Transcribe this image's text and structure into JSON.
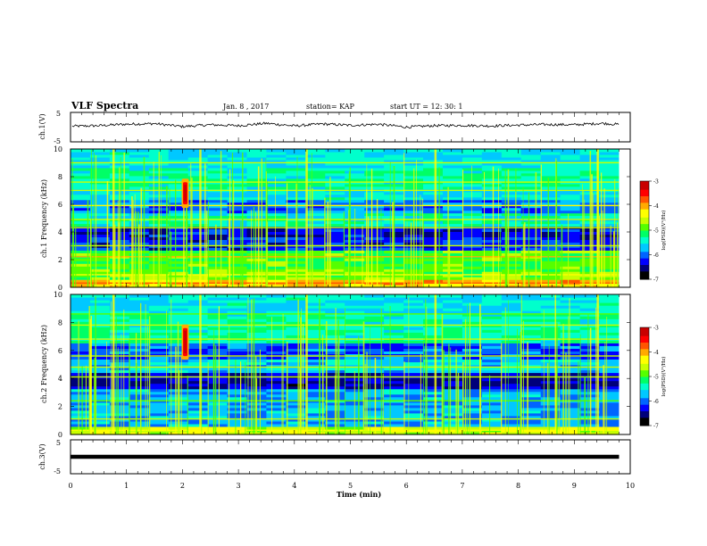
{
  "header": {
    "title": "VLF Spectra",
    "date": "Jan. 8 , 2017",
    "station": "station= KAP",
    "start_ut": "start UT = 12: 30: 1"
  },
  "colormap": [
    "#000000",
    "#00007a",
    "#0000ff",
    "#0064ff",
    "#00c8ff",
    "#00ffcc",
    "#00ff66",
    "#55ff00",
    "#c8ff00",
    "#ffff00",
    "#ffaa00",
    "#ff5500",
    "#ff0000",
    "#c80000"
  ],
  "chart_data": [
    {
      "type": "line",
      "panel": "ch1-waveform",
      "ylabel": "ch.1(V)",
      "ylim": [
        -5,
        5
      ],
      "yticks": [
        "5",
        "-5"
      ],
      "x": [
        0.0,
        0.5,
        1.0,
        1.5,
        2.0,
        2.5,
        3.0,
        3.5,
        4.0,
        4.5,
        5.0,
        5.5,
        6.0,
        6.5,
        7.0,
        7.5,
        8.0,
        8.5,
        9.0,
        9.5,
        9.8
      ],
      "y": [
        0.3,
        0.5,
        1.0,
        1.2,
        0.2,
        0.8,
        0.5,
        1.3,
        0.4,
        1.1,
        0.6,
        1.0,
        0.0,
        0.5,
        0.6,
        0.4,
        0.7,
        0.9,
        0.8,
        1.3,
        0.9
      ]
    },
    {
      "type": "heatmap",
      "panel": "ch1-spectrogram",
      "ylabel": "ch.1 Frequency (kHz)",
      "xlim": [
        0,
        10
      ],
      "ylim": [
        0,
        10
      ],
      "yticks": [
        "0",
        "2",
        "4",
        "6",
        "8",
        "10"
      ],
      "colorbar_label": "log(PSD)(V²/Hz)",
      "colorbar_ticks": [
        "-3",
        "-4",
        "-5",
        "-6",
        "-7"
      ],
      "colorbar_range": [
        -7,
        -3
      ],
      "features": {
        "hot_spot_min": 2.05,
        "hot_spot_khz": [
          6.0,
          7.6
        ]
      }
    },
    {
      "type": "heatmap",
      "panel": "ch2-spectrogram",
      "ylabel": "ch.2 Frequency (kHz)",
      "xlim": [
        0,
        10
      ],
      "ylim": [
        0,
        10
      ],
      "yticks": [
        "0",
        "2",
        "4",
        "6",
        "8",
        "10"
      ],
      "colorbar_label": "log(PSD)(V²/Hz)",
      "colorbar_ticks": [
        "-3",
        "-4",
        "-5",
        "-6",
        "-7"
      ],
      "colorbar_range": [
        -7,
        -3
      ],
      "features": {
        "hot_spot_min": 2.05,
        "hot_spot_khz": [
          5.6,
          7.6
        ]
      }
    },
    {
      "type": "line",
      "panel": "ch3-waveform",
      "ylabel": "ch.3(V)",
      "ylim": [
        -5,
        5
      ],
      "yticks": [
        "5",
        "-5"
      ],
      "x": [
        0,
        9.8
      ],
      "y": [
        0,
        0
      ]
    }
  ],
  "xaxis": {
    "label": "Time (min)",
    "ticks": [
      "0",
      "1",
      "2",
      "3",
      "4",
      "5",
      "6",
      "7",
      "8",
      "9",
      "10"
    ],
    "range": [
      0,
      10
    ],
    "data_end": 9.8
  }
}
